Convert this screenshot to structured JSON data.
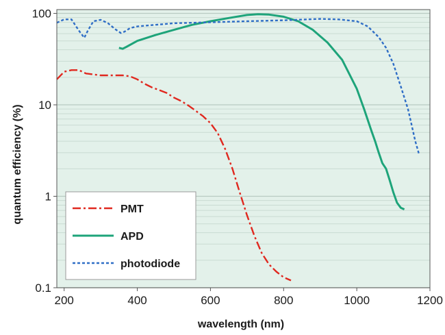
{
  "chart_data": {
    "type": "line",
    "xlabel": "wavelength (nm)",
    "ylabel": "quantum efficiency (%)",
    "xscale": "linear",
    "yscale": "log",
    "xlim": [
      180,
      1200
    ],
    "ylim": [
      0.1,
      110
    ],
    "x_ticks": [
      200,
      400,
      600,
      800,
      1000,
      1200
    ],
    "x_tick_labels": [
      "200",
      "400",
      "600",
      "800",
      "1000",
      "1200"
    ],
    "y_ticks": [
      0.1,
      1,
      10,
      100
    ],
    "y_tick_labels": [
      "0.1",
      "1",
      "10",
      "100"
    ],
    "background_color": "#e3f1ea",
    "legend_position": "bottom-left",
    "series": [
      {
        "name": "PMT",
        "color": "#e0281f",
        "line_style": "dash-dot",
        "x": [
          180,
          200,
          220,
          240,
          260,
          280,
          300,
          320,
          340,
          360,
          380,
          400,
          420,
          440,
          460,
          480,
          500,
          520,
          540,
          560,
          580,
          600,
          620,
          640,
          660,
          680,
          700,
          720,
          740,
          760,
          780,
          800,
          820
        ],
        "y": [
          19,
          23,
          24,
          24,
          22,
          21.5,
          21,
          21,
          21,
          21,
          20.5,
          19,
          17,
          15.5,
          14.5,
          13.5,
          12,
          11,
          9.8,
          8.6,
          7.5,
          6.3,
          4.9,
          3.3,
          2.0,
          1.1,
          0.62,
          0.37,
          0.24,
          0.18,
          0.15,
          0.13,
          0.12
        ]
      },
      {
        "name": "APD",
        "color": "#1ea47a",
        "line_style": "solid",
        "x": [
          350,
          360,
          370,
          400,
          450,
          500,
          550,
          600,
          650,
          700,
          730,
          760,
          800,
          840,
          880,
          920,
          960,
          1000,
          1020,
          1040,
          1050,
          1060,
          1070,
          1080,
          1090,
          1100,
          1110,
          1120,
          1130
        ],
        "y": [
          42,
          41,
          43,
          50,
          58,
          66,
          75,
          82,
          89,
          96,
          98,
          97,
          92,
          82,
          66,
          48,
          31,
          15,
          9,
          5.2,
          4.0,
          3.0,
          2.3,
          2.0,
          1.5,
          1.1,
          0.85,
          0.75,
          0.72
        ]
      },
      {
        "name": "photodiode",
        "color": "#2f6ec6",
        "line_style": "dashed",
        "x": [
          180,
          200,
          220,
          240,
          255,
          265,
          280,
          300,
          320,
          340,
          355,
          365,
          380,
          400,
          450,
          500,
          600,
          700,
          800,
          900,
          950,
          1000,
          1030,
          1060,
          1080,
          1100,
          1120,
          1140,
          1150,
          1160,
          1170
        ],
        "y": [
          79,
          86,
          86,
          65,
          54,
          65,
          82,
          85,
          78,
          67,
          61,
          63,
          69,
          72,
          75,
          78,
          80,
          82,
          84,
          87,
          86,
          82,
          72,
          55,
          42,
          28,
          16,
          9,
          6,
          4,
          2.9
        ]
      }
    ]
  }
}
